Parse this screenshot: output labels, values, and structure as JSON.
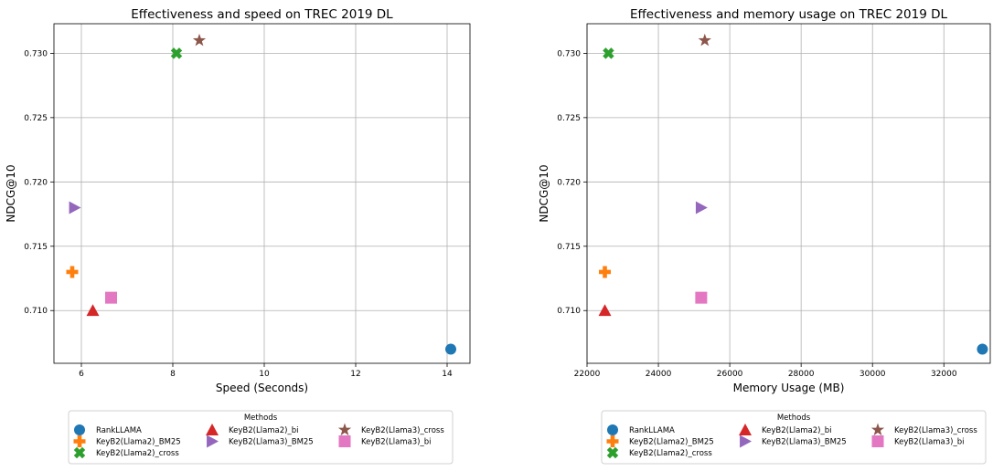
{
  "chart_data": [
    {
      "type": "scatter",
      "title": "Effectiveness and speed on TREC 2019 DL",
      "xlabel": "Speed (Seconds)",
      "ylabel": "NDCG@10",
      "xlim": [
        5.4,
        14.5
      ],
      "ylim": [
        0.7059,
        0.7323
      ],
      "xticks": [
        6,
        8,
        10,
        12,
        14
      ],
      "yticks": [
        0.71,
        0.715,
        0.72,
        0.725,
        0.73
      ],
      "grid": true,
      "legend_title": "Methods",
      "legend_position": "below",
      "series": [
        {
          "name": "RankLLAMA",
          "marker": "circle",
          "color": "#1f77b4",
          "x": 14.08,
          "y": 0.707
        },
        {
          "name": "KeyB2(Llama2)_BM25",
          "marker": "plus",
          "color": "#ff7f0e",
          "x": 5.8,
          "y": 0.713
        },
        {
          "name": "KeyB2(Llama2)_cross",
          "marker": "x",
          "color": "#2ca02c",
          "x": 8.08,
          "y": 0.73
        },
        {
          "name": "KeyB2(Llama2)_bi",
          "marker": "triangle-up",
          "color": "#d62728",
          "x": 6.25,
          "y": 0.71
        },
        {
          "name": "KeyB2(Llama3)_BM25",
          "marker": "triangle-right",
          "color": "#9467bd",
          "x": 5.85,
          "y": 0.718
        },
        {
          "name": "KeyB2(Llama3)_cross",
          "marker": "star",
          "color": "#8c564b",
          "x": 8.58,
          "y": 0.731
        },
        {
          "name": "KeyB2(Llama3)_bi",
          "marker": "square",
          "color": "#e377c2",
          "x": 6.65,
          "y": 0.711
        }
      ]
    },
    {
      "type": "scatter",
      "title": "Effectiveness and memory usage on TREC 2019 DL",
      "xlabel": "Memory Usage (MB)",
      "ylabel": "NDCG@10",
      "xlim": [
        22000,
        33300
      ],
      "ylim": [
        0.7059,
        0.7323
      ],
      "xticks": [
        22000,
        24000,
        26000,
        28000,
        30000,
        32000
      ],
      "yticks": [
        0.71,
        0.715,
        0.72,
        0.725,
        0.73
      ],
      "grid": true,
      "legend_title": "Methods",
      "legend_position": "below",
      "series": [
        {
          "name": "RankLLAMA",
          "marker": "circle",
          "color": "#1f77b4",
          "x": 33080,
          "y": 0.707
        },
        {
          "name": "KeyB2(Llama2)_BM25",
          "marker": "plus",
          "color": "#ff7f0e",
          "x": 22500,
          "y": 0.713
        },
        {
          "name": "KeyB2(Llama2)_cross",
          "marker": "x",
          "color": "#2ca02c",
          "x": 22600,
          "y": 0.73
        },
        {
          "name": "KeyB2(Llama2)_bi",
          "marker": "triangle-up",
          "color": "#d62728",
          "x": 22500,
          "y": 0.71
        },
        {
          "name": "KeyB2(Llama3)_BM25",
          "marker": "triangle-right",
          "color": "#9467bd",
          "x": 25200,
          "y": 0.718
        },
        {
          "name": "KeyB2(Llama3)_cross",
          "marker": "star",
          "color": "#8c564b",
          "x": 25300,
          "y": 0.731
        },
        {
          "name": "KeyB2(Llama3)_bi",
          "marker": "square",
          "color": "#e377c2",
          "x": 25200,
          "y": 0.711
        }
      ]
    }
  ]
}
